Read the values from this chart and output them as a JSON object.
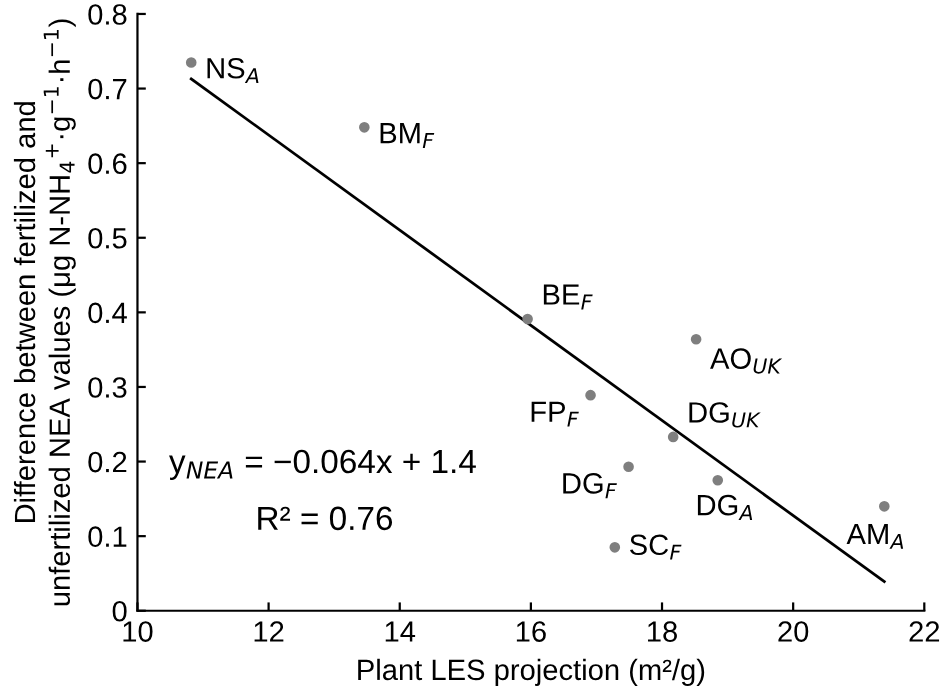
{
  "chart_data": {
    "type": "scatter",
    "xlabel": "Plant LES projection (m²/g)",
    "ylabel": "Difference between fertilized and\nunfertilized NEA values (μg N-NH$_{4}$$^{+}$·g$^{−1}$·h$^{−1}$)",
    "xlim": [
      10,
      22
    ],
    "ylim": [
      0,
      0.8
    ],
    "xticks": [
      10,
      12,
      14,
      16,
      18,
      20,
      22
    ],
    "yticks": [
      0,
      0.1,
      0.2,
      0.3,
      0.4,
      0.5,
      0.6,
      0.7,
      0.8
    ],
    "grid": false,
    "series": [
      {
        "color": "#7f7f7f",
        "marker": "circle",
        "x": [
          10.82,
          13.46,
          15.95,
          18.52,
          16.91,
          18.17,
          17.49,
          18.85,
          21.39,
          17.28
        ],
        "values": [
          0.735,
          0.648,
          0.391,
          0.364,
          0.289,
          0.233,
          0.193,
          0.175,
          0.14,
          0.085
        ]
      },
      {
        "type": "line",
        "color": "#000000",
        "marker": "none",
        "line_style": "solid",
        "x": [
          10.82,
          21.39
        ],
        "values": [
          0.713,
          0.039
        ]
      }
    ],
    "annotations": [
      {
        "text": "NS$_{A}$",
        "x": 10.82,
        "y": 0.735
      },
      {
        "text": "BM$_{F}$",
        "x": 13.46,
        "y": 0.648
      },
      {
        "text": "BE$_{F}$",
        "x": 15.95,
        "y": 0.391
      },
      {
        "text": "AO$_{UK}$",
        "x": 18.52,
        "y": 0.364
      },
      {
        "text": "FP$_{F}$",
        "x": 16.91,
        "y": 0.289
      },
      {
        "text": "DG$_{UK}$",
        "x": 18.17,
        "y": 0.233
      },
      {
        "text": "DG$_{F}$",
        "x": 17.49,
        "y": 0.193
      },
      {
        "text": "DG$_{A}$",
        "x": 18.85,
        "y": 0.175
      },
      {
        "text": "AM$_{A}$",
        "x": 21.39,
        "y": 0.14
      },
      {
        "text": "SC$_{F}$",
        "x": 17.28,
        "y": 0.085
      },
      "y$_{NEA}$ = −0.064x + 1.4",
      "R² = 0.76"
    ]
  }
}
